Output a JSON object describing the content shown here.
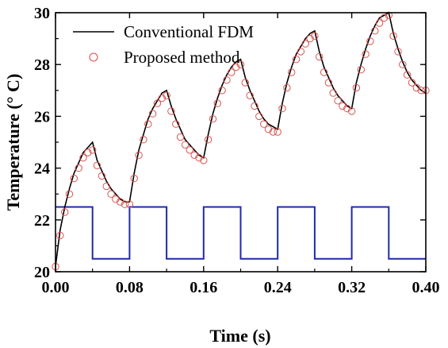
{
  "chart_data": {
    "type": "line",
    "xlabel": "Time (s)",
    "ylabel": "Temperature (° C)",
    "xlim": [
      0,
      0.4
    ],
    "ylim": [
      20,
      30
    ],
    "x_ticks": [
      0.0,
      0.08,
      0.16,
      0.24,
      0.32,
      0.4
    ],
    "x_tick_labels": [
      "0.00",
      "0.08",
      "0.16",
      "0.24",
      "0.32",
      "0.40"
    ],
    "y_ticks": [
      20,
      22,
      24,
      26,
      28,
      30
    ],
    "y_tick_labels": [
      "20",
      "22",
      "24",
      "26",
      "28",
      "30"
    ],
    "legend_position": "top-left",
    "grid": false,
    "colors": {
      "conventional": "#000000",
      "proposed": "#d9534f",
      "signal": "#1f2aa8"
    },
    "series": [
      {
        "name": "Conventional FDM",
        "style": "line",
        "x": [
          0.0,
          0.005,
          0.01,
          0.015,
          0.02,
          0.025,
          0.03,
          0.035,
          0.04,
          0.045,
          0.05,
          0.055,
          0.06,
          0.065,
          0.07,
          0.075,
          0.08,
          0.085,
          0.09,
          0.095,
          0.1,
          0.105,
          0.11,
          0.115,
          0.12,
          0.125,
          0.13,
          0.135,
          0.14,
          0.145,
          0.15,
          0.155,
          0.16,
          0.165,
          0.17,
          0.175,
          0.18,
          0.185,
          0.19,
          0.195,
          0.2,
          0.205,
          0.21,
          0.215,
          0.22,
          0.225,
          0.23,
          0.235,
          0.24,
          0.245,
          0.25,
          0.255,
          0.26,
          0.265,
          0.27,
          0.275,
          0.28,
          0.285,
          0.29,
          0.295,
          0.3,
          0.305,
          0.31,
          0.315,
          0.32,
          0.325,
          0.33,
          0.335,
          0.34,
          0.345,
          0.35,
          0.355,
          0.36,
          0.365,
          0.37,
          0.375,
          0.38,
          0.385,
          0.39,
          0.395,
          0.4
        ],
        "y": [
          20.2,
          21.6,
          22.5,
          23.2,
          23.8,
          24.2,
          24.6,
          24.8,
          25.0,
          24.3,
          23.9,
          23.5,
          23.2,
          23.0,
          22.8,
          22.7,
          22.7,
          23.8,
          24.7,
          25.3,
          25.9,
          26.3,
          26.6,
          26.9,
          27.0,
          26.4,
          25.9,
          25.5,
          25.1,
          24.9,
          24.7,
          24.5,
          24.4,
          25.3,
          26.1,
          26.7,
          27.2,
          27.6,
          27.9,
          28.1,
          28.2,
          27.5,
          27.0,
          26.6,
          26.2,
          25.9,
          25.7,
          25.6,
          25.5,
          26.5,
          27.3,
          27.9,
          28.4,
          28.7,
          29.0,
          29.2,
          29.3,
          28.5,
          27.9,
          27.5,
          27.1,
          26.8,
          26.6,
          26.4,
          26.3,
          27.3,
          28.0,
          28.6,
          29.1,
          29.5,
          29.8,
          29.9,
          30.0,
          29.2,
          28.6,
          28.1,
          27.7,
          27.4,
          27.2,
          27.0,
          26.9
        ]
      },
      {
        "name": "Proposed method",
        "style": "markers",
        "x": [
          0.0,
          0.005,
          0.01,
          0.015,
          0.02,
          0.025,
          0.03,
          0.035,
          0.04,
          0.045,
          0.05,
          0.055,
          0.06,
          0.065,
          0.07,
          0.075,
          0.08,
          0.085,
          0.09,
          0.095,
          0.1,
          0.105,
          0.11,
          0.115,
          0.12,
          0.125,
          0.13,
          0.135,
          0.14,
          0.145,
          0.15,
          0.155,
          0.16,
          0.165,
          0.17,
          0.175,
          0.18,
          0.185,
          0.19,
          0.195,
          0.2,
          0.205,
          0.21,
          0.215,
          0.22,
          0.225,
          0.23,
          0.235,
          0.24,
          0.245,
          0.25,
          0.255,
          0.26,
          0.265,
          0.27,
          0.275,
          0.28,
          0.285,
          0.29,
          0.295,
          0.3,
          0.305,
          0.31,
          0.315,
          0.32,
          0.325,
          0.33,
          0.335,
          0.34,
          0.345,
          0.35,
          0.355,
          0.36,
          0.365,
          0.37,
          0.375,
          0.38,
          0.385,
          0.39,
          0.395,
          0.4
        ],
        "y": [
          20.2,
          21.4,
          22.3,
          23.0,
          23.6,
          24.0,
          24.4,
          24.6,
          24.7,
          24.1,
          23.7,
          23.3,
          23.0,
          22.8,
          22.7,
          22.6,
          22.6,
          23.6,
          24.5,
          25.1,
          25.7,
          26.1,
          26.5,
          26.7,
          26.8,
          26.2,
          25.7,
          25.2,
          24.9,
          24.7,
          24.5,
          24.4,
          24.3,
          25.1,
          25.9,
          26.5,
          27.0,
          27.4,
          27.7,
          27.9,
          28.0,
          27.3,
          26.8,
          26.4,
          26.0,
          25.7,
          25.5,
          25.4,
          25.4,
          26.3,
          27.1,
          27.7,
          28.2,
          28.5,
          28.8,
          29.0,
          29.1,
          28.3,
          27.7,
          27.3,
          26.9,
          26.6,
          26.4,
          26.3,
          26.2,
          27.1,
          27.8,
          28.4,
          28.9,
          29.3,
          29.6,
          29.8,
          29.9,
          29.1,
          28.5,
          28.0,
          27.6,
          27.3,
          27.1,
          27.0,
          27.0
        ]
      },
      {
        "style": "step",
        "x": [
          0.0,
          0.04,
          0.04,
          0.08,
          0.08,
          0.12,
          0.12,
          0.16,
          0.16,
          0.2,
          0.2,
          0.24,
          0.24,
          0.28,
          0.28,
          0.32,
          0.32,
          0.36,
          0.36,
          0.4
        ],
        "y": [
          22.5,
          22.5,
          20.5,
          20.5,
          22.5,
          22.5,
          20.5,
          20.5,
          22.5,
          22.5,
          20.5,
          20.5,
          22.5,
          22.5,
          20.5,
          20.5,
          22.5,
          22.5,
          20.5,
          20.5
        ]
      }
    ]
  }
}
